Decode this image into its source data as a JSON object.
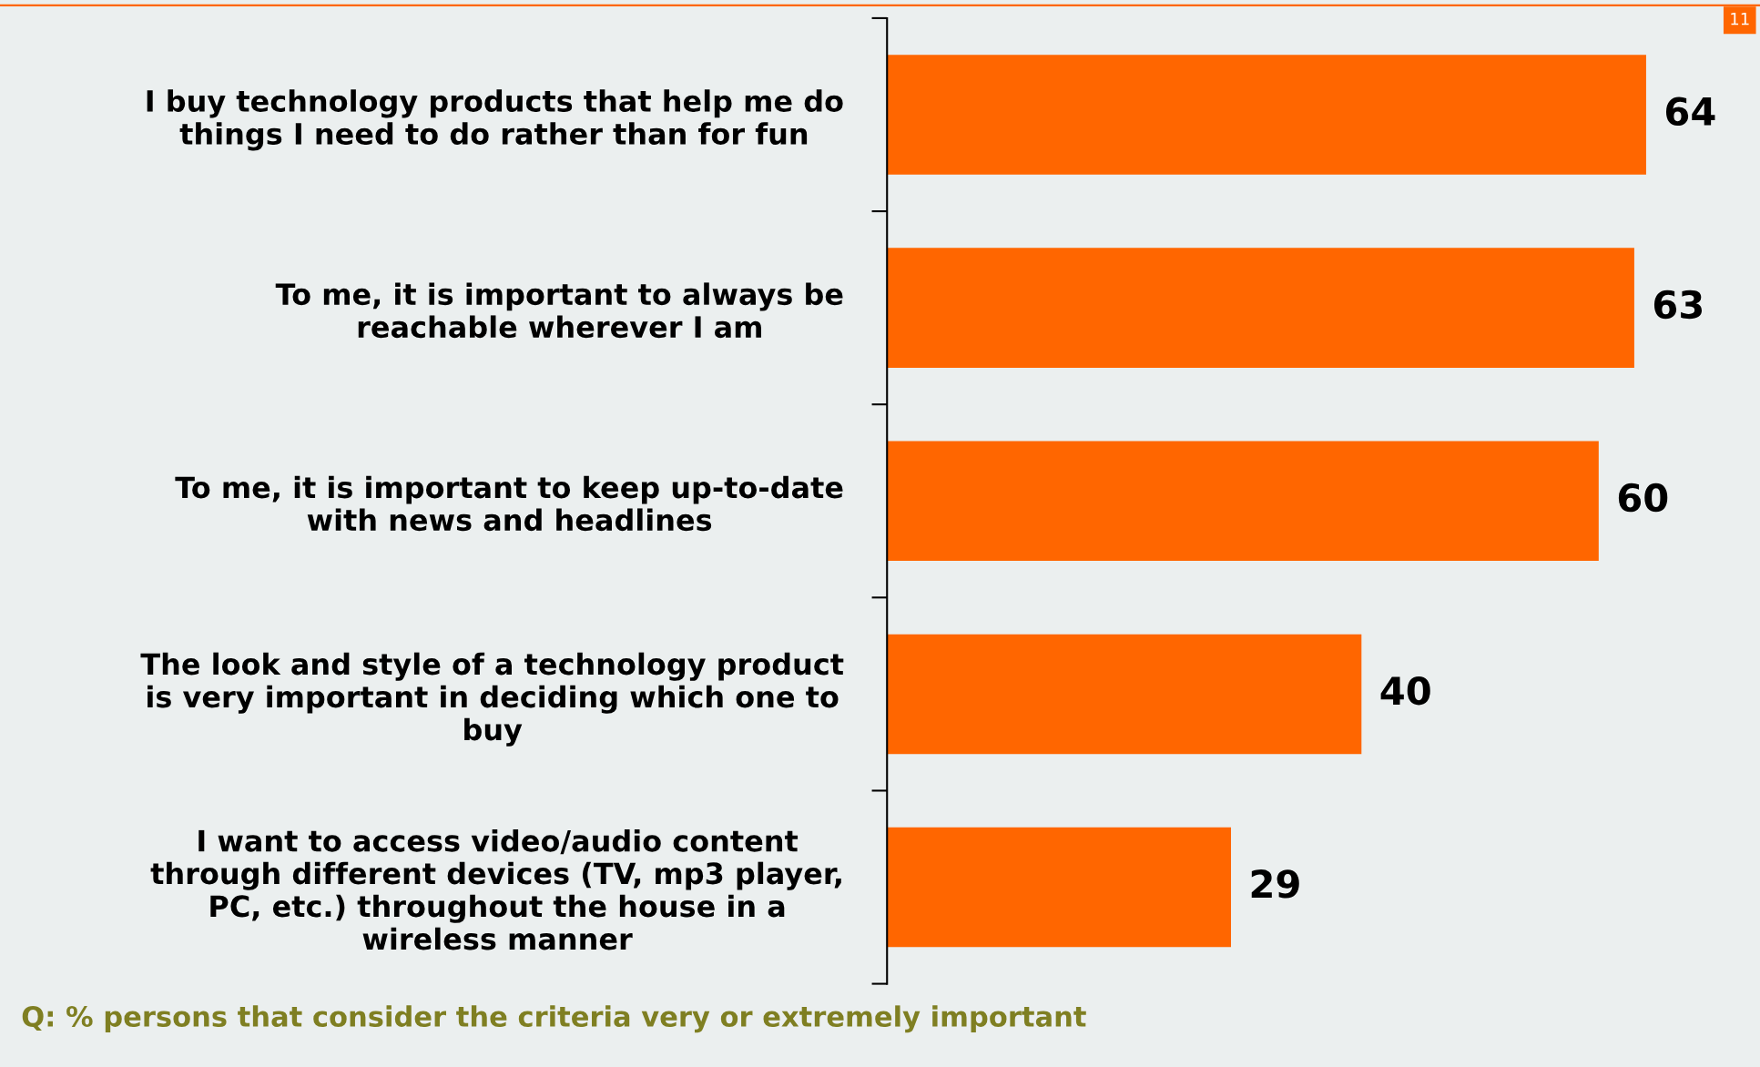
{
  "chart_data": {
    "type": "bar",
    "orientation": "horizontal",
    "categories": [
      "I buy technology products that help me do\nthings I need to do rather than for fun",
      "To me, it is important to always be\nreachable wherever I am",
      "To me, it is important to keep up-to-date\nwith news and headlines",
      "The look and style of a technology product\nis very important in deciding which one to\nbuy",
      "I want to access video/audio content\nthrough different devices (TV, mp3 player,\nPC, etc.) throughout the house in a\nwireless manner"
    ],
    "values": [
      64,
      63,
      60,
      40,
      29
    ],
    "color": "#ff6600",
    "data_labels": true,
    "grid": false,
    "legend": false,
    "annotations": [
      "Q: % persons that consider the criteria very or extremely important",
      "11"
    ]
  }
}
